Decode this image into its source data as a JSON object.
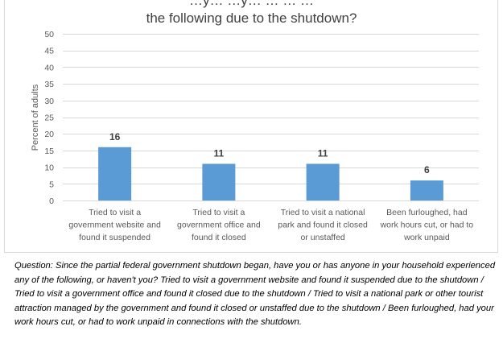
{
  "chart_data": {
    "type": "bar",
    "title_lines": [
      "…y… …y… … … …",
      "the following due to the shutdown?"
    ],
    "ylabel": "Percent of adults",
    "ylim": [
      0,
      50
    ],
    "yticks": [
      0,
      5,
      10,
      15,
      20,
      25,
      30,
      35,
      40,
      45,
      50
    ],
    "grid": true,
    "categories": [
      [
        "Tried to visit a",
        "government website and",
        "found it suspended"
      ],
      [
        "Tried to visit a",
        "government office and",
        "found it closed"
      ],
      [
        "Tried to visit a national",
        "park and found it closed",
        "or unstaffed"
      ],
      [
        "Been furloughed, had",
        "work hours cut, or had to",
        "work unpaid"
      ]
    ],
    "values": [
      16,
      11,
      11,
      6
    ],
    "data_labels": [
      "16",
      "11",
      "11",
      "6"
    ],
    "bar_color": "#5b9bd5"
  },
  "note": "Question: Since the partial federal government shutdown began, have you or has anyone in your household experienced any of the following, or haven't you? Tried to visit a government website and found it suspended due to the shutdown / Tried to visit a government office and found it closed due to the shutdown / Tried to visit a national park or other tourist attraction managed by the government and found it closed or unstaffed due to the shutdown / Been furloughed, had your work hours cut, or had to work unpaid in connections with the shutdown."
}
